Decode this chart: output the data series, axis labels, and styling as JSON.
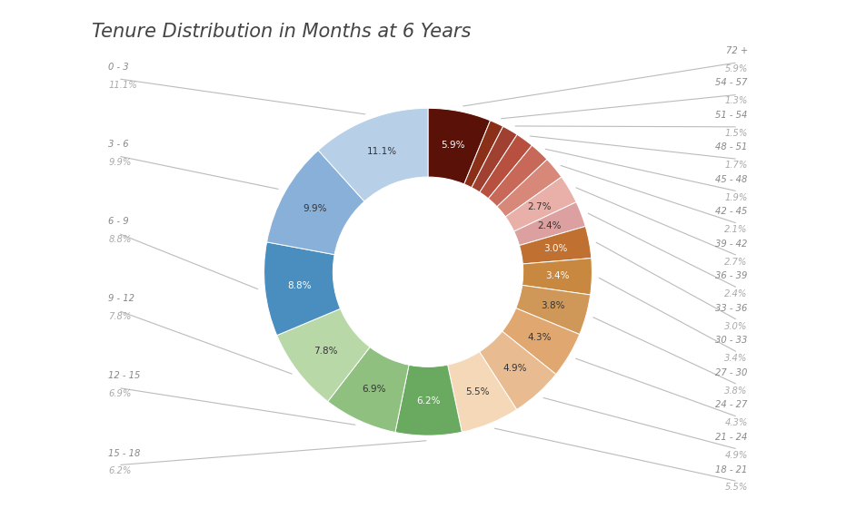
{
  "title": "Tenure Distribution in Months at 6 Years",
  "segments_ordered": [
    {
      "label": "72 +",
      "pct": 5.9,
      "color": "#5a1208",
      "side": "right",
      "annotate": true
    },
    {
      "label": "54 - 57",
      "pct": 1.3,
      "color": "#8b3018",
      "side": "right",
      "annotate": true
    },
    {
      "label": "51 - 54",
      "pct": 1.5,
      "color": "#a04030",
      "side": "right",
      "annotate": true
    },
    {
      "label": "48 - 51",
      "pct": 1.7,
      "color": "#b85040",
      "side": "right",
      "annotate": true
    },
    {
      "label": "45 - 48",
      "pct": 1.9,
      "color": "#c86858",
      "side": "right",
      "annotate": true
    },
    {
      "label": "42 - 45",
      "pct": 2.1,
      "color": "#d88878",
      "side": "right",
      "annotate": true
    },
    {
      "label": "39 - 42",
      "pct": 2.7,
      "color": "#e8b0a8",
      "side": "right",
      "annotate": true
    },
    {
      "label": "36 - 39",
      "pct": 2.4,
      "color": "#dda0a0",
      "side": "right",
      "annotate": true
    },
    {
      "label": "33 - 36",
      "pct": 3.0,
      "color": "#c07030",
      "side": "right",
      "annotate": true
    },
    {
      "label": "30 - 33",
      "pct": 3.4,
      "color": "#c88840",
      "side": "right",
      "annotate": true
    },
    {
      "label": "27 - 30",
      "pct": 3.8,
      "color": "#d09858",
      "side": "right",
      "annotate": true
    },
    {
      "label": "24 - 27",
      "pct": 4.3,
      "color": "#e0a870",
      "side": "right",
      "annotate": true
    },
    {
      "label": "21 - 24",
      "pct": 4.9,
      "color": "#e8bc90",
      "side": "right",
      "annotate": true
    },
    {
      "label": "18 - 21",
      "pct": 5.5,
      "color": "#f5d8b8",
      "side": "right",
      "annotate": true
    },
    {
      "label": "15 - 18",
      "pct": 6.2,
      "color": "#6aaa60",
      "side": "left",
      "annotate": true
    },
    {
      "label": "12 - 15",
      "pct": 6.9,
      "color": "#90c080",
      "side": "left",
      "annotate": true
    },
    {
      "label": "9 - 12",
      "pct": 7.8,
      "color": "#b8d8a8",
      "side": "left",
      "annotate": true
    },
    {
      "label": "6 - 9",
      "pct": 8.8,
      "color": "#4a8ec0",
      "side": "left",
      "annotate": true
    },
    {
      "label": "3 - 6",
      "pct": 9.9,
      "color": "#88b0d8",
      "side": "left",
      "annotate": true
    },
    {
      "label": "0 - 3",
      "pct": 11.1,
      "color": "#b8cfe8",
      "side": "left",
      "annotate": true
    }
  ],
  "title_fontsize": 15,
  "bg_color": "#ffffff",
  "label_color_dark": "#777777",
  "label_color_light": "#aaaaaa",
  "inside_label_min_pct": 2.4
}
